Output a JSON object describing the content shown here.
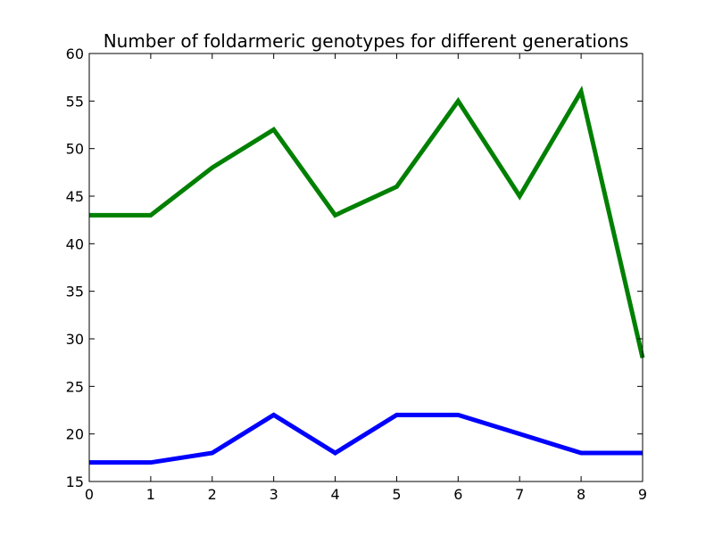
{
  "chart_data": {
    "type": "line",
    "title": "Number of foldarmeric genotypes for different generations",
    "xlabel": "",
    "ylabel": "",
    "x": [
      0,
      1,
      2,
      3,
      4,
      5,
      6,
      7,
      8,
      9
    ],
    "xlim": [
      0,
      9
    ],
    "ylim": [
      15,
      60
    ],
    "xticks": [
      0,
      1,
      2,
      3,
      4,
      5,
      6,
      7,
      8,
      9
    ],
    "yticks": [
      15,
      20,
      25,
      30,
      35,
      40,
      45,
      50,
      55,
      60
    ],
    "grid": false,
    "legend": "none",
    "series": [
      {
        "color": "#0000ff",
        "values": [
          17,
          17,
          18,
          22,
          18,
          22,
          22,
          20,
          18,
          18
        ]
      },
      {
        "color": "#008000",
        "values": [
          43,
          43,
          48,
          52,
          43,
          46,
          55,
          45,
          56,
          28
        ]
      }
    ]
  }
}
